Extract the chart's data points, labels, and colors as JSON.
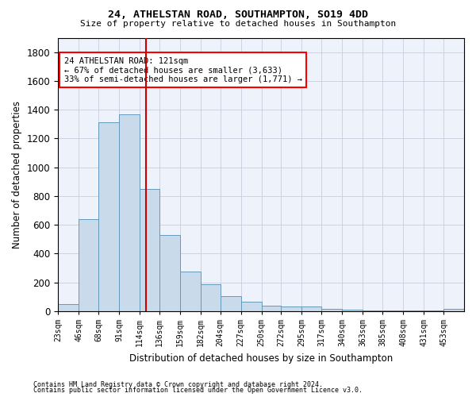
{
  "title": "24, ATHELSTAN ROAD, SOUTHAMPTON, SO19 4DD",
  "subtitle": "Size of property relative to detached houses in Southampton",
  "xlabel": "Distribution of detached houses by size in Southampton",
  "ylabel": "Number of detached properties",
  "bar_color": "#c9daea",
  "bar_edge_color": "#6699bb",
  "vline_x": 121,
  "vline_color": "#cc0000",
  "annotation_title": "24 ATHELSTAN ROAD: 121sqm",
  "annotation_line1": "← 67% of detached houses are smaller (3,633)",
  "annotation_line2": "33% of semi-detached houses are larger (1,771) →",
  "bins": [
    23,
    46,
    68,
    91,
    114,
    136,
    159,
    182,
    204,
    227,
    250,
    272,
    295,
    317,
    340,
    363,
    385,
    408,
    431,
    453,
    476
  ],
  "bar_heights": [
    50,
    640,
    1310,
    1370,
    850,
    530,
    275,
    185,
    105,
    65,
    40,
    35,
    30,
    15,
    10,
    5,
    5,
    5,
    5,
    15
  ],
  "ylim": [
    0,
    1900
  ],
  "yticks": [
    0,
    200,
    400,
    600,
    800,
    1000,
    1200,
    1400,
    1600,
    1800
  ],
  "grid_color": "#ccccdd",
  "bg_color": "#eef2fa",
  "footer1": "Contains HM Land Registry data © Crown copyright and database right 2024.",
  "footer2": "Contains public sector information licensed under the Open Government Licence v3.0."
}
